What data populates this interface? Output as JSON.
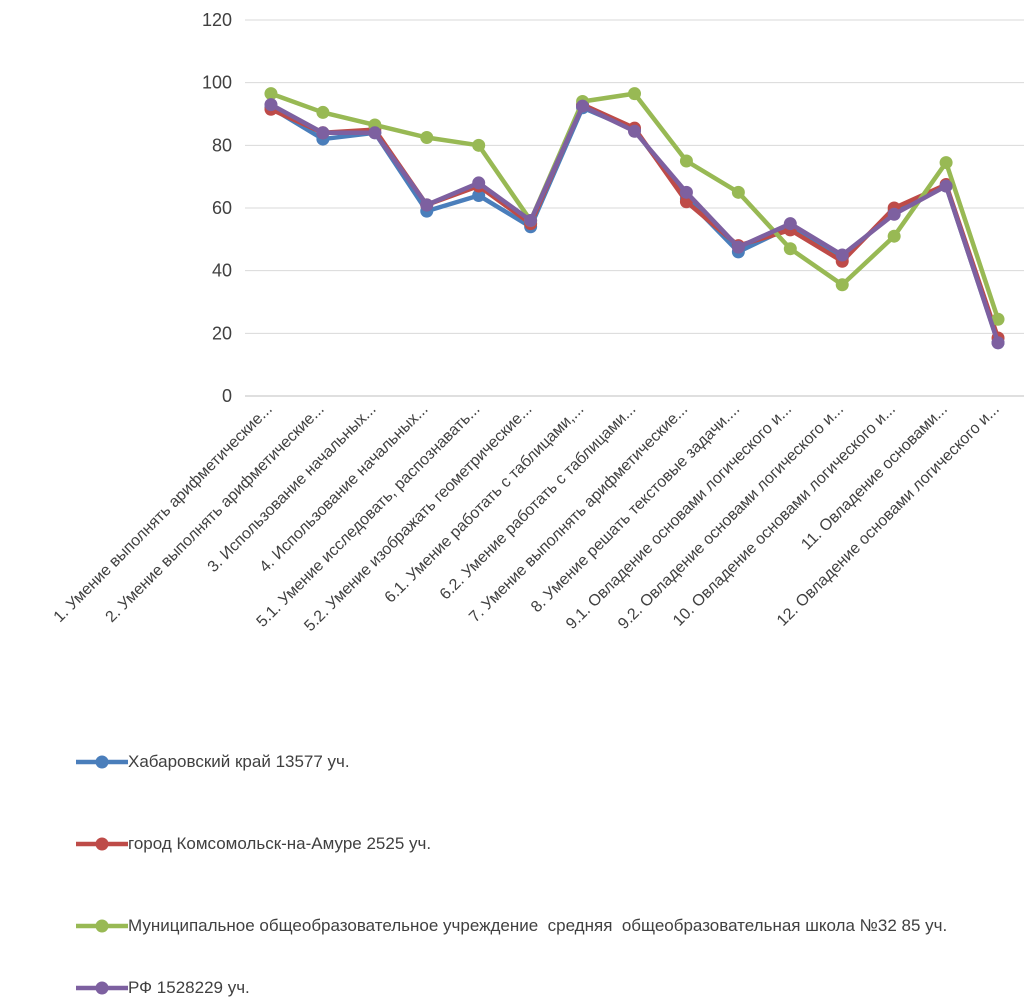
{
  "chart_data": {
    "type": "line",
    "title": "",
    "xlabel": "",
    "ylabel": "",
    "ylim": [
      0,
      120
    ],
    "yticks": [
      0,
      20,
      40,
      60,
      80,
      100,
      120
    ],
    "grid": true,
    "legend_position": "bottom",
    "categories": [
      "1. Умение выполнять арифметические...",
      "2. Умение выполнять арифметические...",
      "3. Использование начальных...",
      "4. Использование начальных...",
      "5.1. Умение исследовать, распознавать...",
      "5.2. Умение изображать геометрические...",
      "6.1. Умение работать с таблицами,...",
      "6.2. Умение работать с таблицами...",
      "7. Умение выполнять арифметические...",
      "8. Умение решать текстовые задачи....",
      "9.1. Овладение основами логического и...",
      "9.2. Овладение основами логического и...",
      "10. Овладение основами логического и...",
      "11. Овладение основами...",
      "12. Овладение основами логического и..."
    ],
    "series": [
      {
        "name": "Хабаровский край 13577 уч.",
        "color": "#4a7ebb",
        "values": [
          92,
          82,
          84,
          59,
          64,
          54,
          92,
          85,
          63,
          46,
          54,
          44,
          59,
          67,
          17
        ]
      },
      {
        "name": "город Комсомольск-на-Амуре 2525 уч.",
        "color": "#be4b48",
        "values": [
          91.5,
          84,
          85,
          61,
          67,
          55,
          93,
          85.5,
          62,
          48,
          53,
          43,
          60,
          67.5,
          18.5
        ]
      },
      {
        "name": "Муниципальное общеобразовательное учреждение  средняя  общеобразовательная школа №32 85 уч.",
        "color": "#98b954",
        "values": [
          96.5,
          90.5,
          86.5,
          82.5,
          80,
          56,
          94,
          96.5,
          75,
          65,
          47,
          35.5,
          51,
          74.5,
          24.5
        ]
      },
      {
        "name": "РФ 1528229 уч.",
        "color": "#7d60a0",
        "values": [
          93,
          84,
          84,
          61,
          68,
          56,
          92.5,
          84.5,
          65,
          47.5,
          55,
          45,
          58,
          67,
          17
        ]
      }
    ]
  }
}
